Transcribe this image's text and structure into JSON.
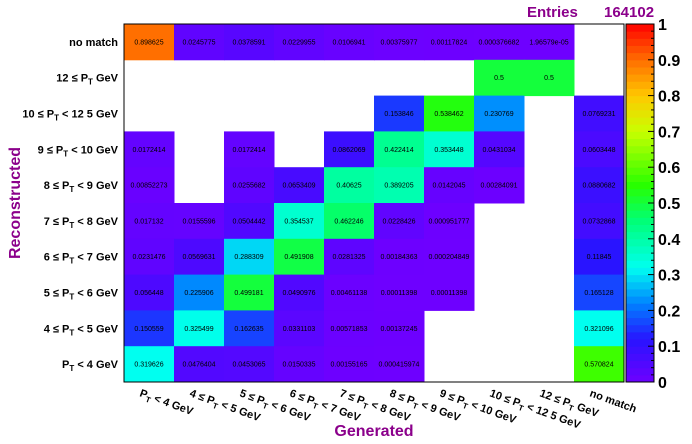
{
  "stats": {
    "entries_label": "Entries",
    "entries_value": "164102"
  },
  "chart_data": {
    "type": "heatmap",
    "xlabel": "Generated",
    "ylabel": "Reconstructed",
    "x_categories": [
      "P_T < 4 GeV",
      "4 ≤ P_T < 5 GeV",
      "5 ≤ P_T < 6 GeV",
      "6 ≤ P_T < 7 GeV",
      "7 ≤ P_T < 8 GeV",
      "8 ≤ P_T < 9 GeV",
      "9 ≤ P_T < 10 GeV",
      "10 ≤ P_T < 12 5 GeV",
      "12 ≤ P_T GeV",
      "no match"
    ],
    "y_categories": [
      "no match",
      "12 ≤ P_T GeV",
      "10 ≤ P_T < 12 5 GeV",
      "9 ≤ P_T < 10 GeV",
      "8 ≤ P_T < 9 GeV",
      "7 ≤ P_T < 8 GeV",
      "6 ≤ P_T < 7 GeV",
      "5 ≤ P_T < 6 GeV",
      "4 ≤ P_T < 5 GeV",
      "P_T < 4 GeV"
    ],
    "cells": [
      [
        "0.898625",
        "0.0245775",
        "0.0378591",
        "0.0229955",
        "0.0106941",
        "0.00375977",
        "0.00117824",
        "0.000376682",
        "1.96579e-05",
        null
      ],
      [
        null,
        null,
        null,
        null,
        null,
        null,
        null,
        "0.5",
        "0.5",
        null
      ],
      [
        null,
        null,
        null,
        null,
        null,
        "0.153846",
        "0.538462",
        "0.230769",
        null,
        "0.0769231"
      ],
      [
        "0.0172414",
        null,
        "0.0172414",
        null,
        "0.0862069",
        "0.422414",
        "0.353448",
        "0.0431034",
        null,
        "0.0603448"
      ],
      [
        "0.00852273",
        null,
        "0.0255682",
        "0.0653409",
        "0.40625",
        "0.389205",
        "0.0142045",
        "0.00284091",
        null,
        "0.0880682"
      ],
      [
        "0.017132",
        "0.0155596",
        "0.0504442",
        "0.354537",
        "0.462246",
        "0.0228426",
        "0.000951777",
        null,
        null,
        "0.0732868"
      ],
      [
        "0.0231476",
        "0.0569631",
        "0.288309",
        "0.491908",
        "0.0281325",
        "0.00184363",
        "0.000204849",
        null,
        null,
        "0.11845"
      ],
      [
        "0.056448",
        "0.225906",
        "0.499181",
        "0.0490976",
        "0.00461138",
        "0.00011398",
        "0.00011398",
        null,
        null,
        "0.165128"
      ],
      [
        "0.150559",
        "0.325499",
        "0.162635",
        "0.0331103",
        "0.00571853",
        "0.00137245",
        null,
        null,
        null,
        "0.321096"
      ],
      [
        "0.319626",
        "0.0476404",
        "0.0453065",
        "0.0150335",
        "0.00155165",
        "0.000415974",
        null,
        null,
        null,
        "0.570824"
      ]
    ],
    "zrange": [
      0,
      1
    ],
    "colorbar_ticks": [
      "0",
      "0.1",
      "0.2",
      "0.3",
      "0.4",
      "0.5",
      "0.6",
      "0.7",
      "0.8",
      "0.9",
      "1"
    ],
    "axis_color": "#8b008b"
  }
}
